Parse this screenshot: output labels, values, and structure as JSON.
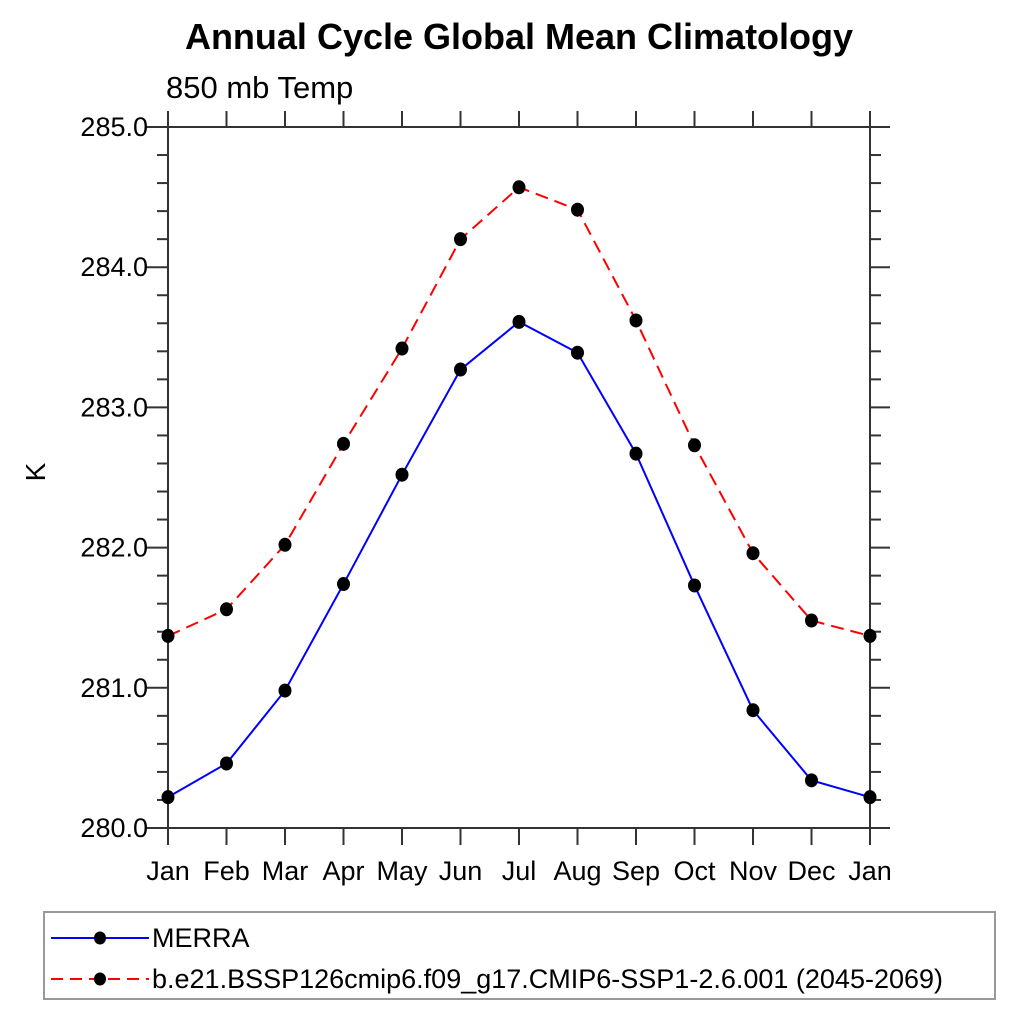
{
  "title": "Annual Cycle Global Mean Climatology",
  "subtitle": "850 mb Temp",
  "ylabel": "K",
  "legend": {
    "position": "bottom",
    "items": [
      {
        "label": "MERRA",
        "color": "#0000ff",
        "style": "solid",
        "marker": "circle",
        "marker_color": "#000000"
      },
      {
        "label": "b.e21.BSSP126cmip6.f09_g17.CMIP6-SSP1-2.6.001 (2045-2069)",
        "color": "#ff0000",
        "style": "dashed",
        "marker": "circle",
        "marker_color": "#000000"
      }
    ]
  },
  "chart_data": {
    "type": "line",
    "title": "Annual Cycle Global Mean Climatology",
    "subtitle": "850 mb Temp",
    "xlabel": "",
    "ylabel": "K",
    "categories": [
      "Jan",
      "Feb",
      "Mar",
      "Apr",
      "May",
      "Jun",
      "Jul",
      "Aug",
      "Sep",
      "Oct",
      "Nov",
      "Dec",
      "Jan"
    ],
    "series": [
      {
        "name": "MERRA",
        "color": "#0000ff",
        "style": "solid",
        "marker": "circle",
        "marker_color": "#000000",
        "values": [
          280.22,
          280.46,
          280.98,
          281.74,
          282.52,
          283.27,
          283.61,
          283.39,
          282.67,
          281.73,
          280.84,
          280.34,
          280.22
        ]
      },
      {
        "name": "b.e21.BSSP126cmip6.f09_g17.CMIP6-SSP1-2.6.001 (2045-2069)",
        "color": "#ff0000",
        "style": "dashed",
        "marker": "circle",
        "marker_color": "#000000",
        "values": [
          281.37,
          281.56,
          282.02,
          282.74,
          283.42,
          284.2,
          284.57,
          284.41,
          283.62,
          282.73,
          281.96,
          281.48,
          281.37
        ]
      }
    ],
    "ylim": [
      280.0,
      285.0
    ],
    "ytick_major": 1.0,
    "ytick_minor": 0.2,
    "ytick_labels": [
      "280.0",
      "281.0",
      "282.0",
      "283.0",
      "284.0",
      "285.0"
    ],
    "grid": false,
    "legend_position": "bottom"
  }
}
